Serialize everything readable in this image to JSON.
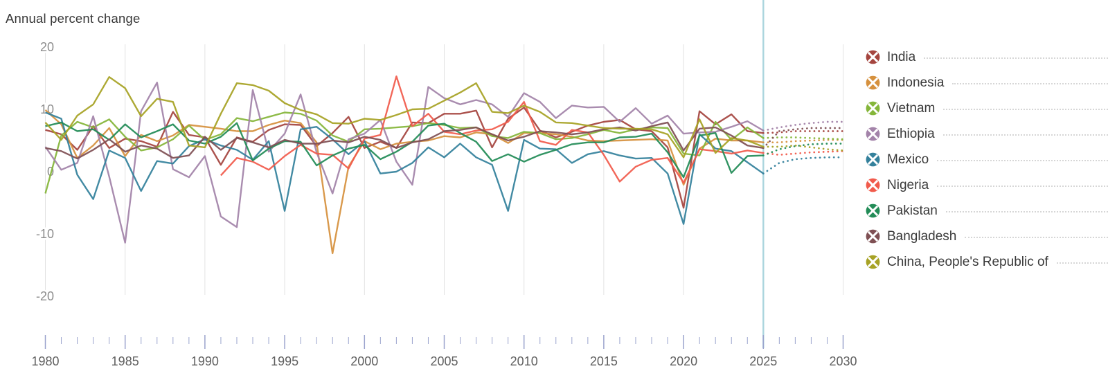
{
  "title": "Annual percent change",
  "colors": {
    "title_text": "#383838",
    "grid_line": "#e2e2e2",
    "axis_tick": "#9aa3cd",
    "x_axis_label": "#5f5f5f",
    "y_axis_label": "#8d8d8d",
    "legend_label": "#3a3a3a",
    "legend_leader": "#d6d6d6",
    "projection_divider": "#abd5de",
    "background": "#ffffff"
  },
  "legend": {
    "position": "right",
    "icon": "circle-with-x"
  },
  "chart_data": {
    "type": "line",
    "title": "Annual percent change",
    "xlabel": "",
    "ylabel": "Annual percent change",
    "x_start": 1980,
    "x_end": 2030,
    "projection_start": 2025,
    "ylim": [
      -20,
      20
    ],
    "yticks": [
      20,
      10,
      0,
      -10,
      -20
    ],
    "xticks": [
      1980,
      1985,
      1990,
      1995,
      2000,
      2005,
      2010,
      2015,
      2020,
      2025,
      2030
    ],
    "grid": "vertical-only",
    "legend_position": "right",
    "series": [
      {
        "name": "India",
        "color": "#a5453f",
        "start_year": 1980,
        "values": [
          6.7,
          6.0,
          3.5,
          7.3,
          3.8,
          5.3,
          4.9,
          4.0,
          9.6,
          5.9,
          5.5,
          1.1,
          5.5,
          4.8,
          6.7,
          7.6,
          7.5,
          4.1,
          6.2,
          8.8,
          3.8,
          4.8,
          3.8,
          7.9,
          7.8,
          9.3,
          9.3,
          9.8,
          3.9,
          8.5,
          10.3,
          6.6,
          5.5,
          6.4,
          7.4,
          8.0,
          8.3,
          6.8,
          6.5,
          3.9,
          -5.8,
          9.7,
          7.6,
          9.2,
          6.5,
          6.2,
          6.3,
          6.5,
          6.5,
          6.5,
          6.5
        ]
      },
      {
        "name": "Indonesia",
        "color": "#d6913e",
        "start_year": 1980,
        "values": [
          9.9,
          7.6,
          2.2,
          4.2,
          7.0,
          2.5,
          5.9,
          4.9,
          5.8,
          7.5,
          7.2,
          6.9,
          6.5,
          6.5,
          7.5,
          8.2,
          7.8,
          4.7,
          -13.1,
          0.8,
          4.9,
          3.6,
          4.5,
          4.8,
          5.0,
          5.7,
          5.5,
          6.3,
          6.0,
          4.6,
          6.2,
          6.2,
          6.0,
          5.6,
          5.0,
          4.9,
          5.0,
          5.1,
          5.2,
          5.0,
          -2.1,
          3.7,
          5.3,
          5.0,
          5.0,
          4.7,
          4.7,
          4.9,
          5.0,
          5.1,
          5.1
        ]
      },
      {
        "name": "Vietnam",
        "color": "#85b63a",
        "start_year": 1980,
        "values": [
          -3.5,
          5.8,
          8.0,
          7.1,
          8.4,
          5.6,
          3.4,
          3.9,
          5.2,
          7.4,
          5.1,
          6.0,
          8.6,
          8.1,
          8.8,
          9.5,
          9.3,
          8.2,
          5.8,
          4.8,
          6.8,
          6.9,
          7.1,
          7.3,
          7.8,
          7.5,
          7.0,
          7.1,
          5.7,
          5.4,
          6.4,
          6.2,
          5.2,
          5.4,
          6.0,
          6.7,
          6.2,
          6.8,
          7.1,
          7.0,
          2.9,
          2.6,
          8.0,
          5.1,
          7.1,
          5.4,
          5.5,
          5.5,
          5.4,
          5.3,
          5.2
        ]
      },
      {
        "name": "Ethiopia",
        "color": "#a383a9",
        "start_year": 1980,
        "values": [
          4.0,
          0.3,
          1.4,
          8.9,
          -0.8,
          -11.4,
          9.7,
          14.3,
          0.4,
          -0.9,
          2.5,
          -7.2,
          -8.9,
          13.1,
          3.2,
          6.1,
          12.4,
          3.1,
          -3.5,
          5.2,
          6.1,
          8.3,
          1.6,
          -2.1,
          13.6,
          11.8,
          10.8,
          11.5,
          10.8,
          8.8,
          12.6,
          11.2,
          8.6,
          10.6,
          10.3,
          10.4,
          8.0,
          10.2,
          7.7,
          9.0,
          6.1,
          6.3,
          6.4,
          7.2,
          8.1,
          6.6,
          7.1,
          7.5,
          7.8,
          8.0,
          8.0
        ]
      },
      {
        "name": "Mexico",
        "color": "#34819c",
        "start_year": 1980,
        "values": [
          9.5,
          8.5,
          -0.5,
          -4.4,
          3.4,
          2.2,
          -3.1,
          1.7,
          1.3,
          4.1,
          5.2,
          4.2,
          3.5,
          1.9,
          4.9,
          -6.3,
          6.8,
          7.2,
          5.2,
          2.8,
          4.9,
          -0.3,
          0.0,
          1.4,
          3.9,
          2.3,
          4.5,
          2.3,
          1.1,
          -6.3,
          5.1,
          3.7,
          3.6,
          1.4,
          2.8,
          3.3,
          2.6,
          2.1,
          2.2,
          -0.3,
          -8.4,
          6.0,
          3.7,
          3.3,
          1.5,
          -0.3,
          1.4,
          2.0,
          2.2,
          2.3,
          2.3
        ]
      },
      {
        "name": "Nigeria",
        "color": "#f15b4c",
        "start_year": 1991,
        "values": [
          -0.6,
          2.2,
          1.6,
          0.3,
          2.5,
          4.3,
          2.9,
          2.7,
          0.5,
          5.3,
          5.9,
          15.3,
          7.3,
          9.3,
          6.4,
          6.0,
          6.6,
          6.8,
          8.0,
          11.2,
          4.9,
          4.3,
          6.7,
          6.3,
          2.7,
          -1.6,
          0.8,
          1.9,
          2.2,
          -1.8,
          3.6,
          3.3,
          2.9,
          3.4,
          3.0,
          2.7,
          2.9,
          3.1,
          3.2,
          3.3
        ]
      },
      {
        "name": "Pakistan",
        "color": "#228c57",
        "start_year": 1980,
        "values": [
          7.3,
          7.9,
          6.5,
          6.8,
          5.1,
          7.6,
          5.5,
          6.5,
          7.6,
          5.0,
          4.5,
          5.6,
          7.8,
          1.8,
          3.7,
          4.9,
          4.8,
          1.0,
          2.6,
          3.7,
          4.3,
          2.0,
          3.2,
          4.8,
          7.4,
          7.7,
          6.2,
          4.8,
          1.7,
          2.8,
          1.6,
          2.7,
          3.5,
          4.4,
          4.7,
          4.7,
          5.5,
          5.6,
          6.1,
          3.1,
          -0.9,
          5.8,
          6.2,
          -0.2,
          2.5,
          2.6,
          3.6,
          4.1,
          4.4,
          4.5,
          4.5
        ]
      },
      {
        "name": "Bangladesh",
        "color": "#7f5054",
        "start_year": 1980,
        "values": [
          3.8,
          3.3,
          2.1,
          3.5,
          5.2,
          3.2,
          4.2,
          3.7,
          2.2,
          2.6,
          5.6,
          3.5,
          5.4,
          4.7,
          3.9,
          5.1,
          4.5,
          4.5,
          5.0,
          4.7,
          5.6,
          5.1,
          3.8,
          4.7,
          5.2,
          6.5,
          6.7,
          7.1,
          6.0,
          5.0,
          5.6,
          6.5,
          6.3,
          6.0,
          6.3,
          6.8,
          7.1,
          6.6,
          7.3,
          7.9,
          3.4,
          6.9,
          7.1,
          5.8,
          4.2,
          3.8,
          6.5,
          6.8,
          7.0,
          7.0,
          7.0
        ]
      },
      {
        "name": "China, People's Republic of",
        "color": "#a7a225",
        "start_year": 1980,
        "values": [
          7.9,
          5.1,
          9.0,
          10.8,
          15.2,
          13.4,
          8.9,
          11.7,
          11.2,
          4.2,
          3.9,
          9.3,
          14.2,
          13.9,
          13.0,
          11.0,
          9.9,
          9.2,
          7.8,
          7.7,
          8.5,
          8.3,
          9.1,
          10.0,
          10.1,
          11.4,
          12.7,
          14.2,
          9.6,
          9.4,
          10.6,
          9.6,
          7.9,
          7.8,
          7.4,
          7.0,
          6.9,
          6.9,
          6.8,
          6.0,
          2.3,
          8.4,
          3.0,
          5.4,
          5.0,
          4.0,
          4.0,
          4.2,
          3.9,
          3.6,
          3.4
        ]
      }
    ]
  }
}
